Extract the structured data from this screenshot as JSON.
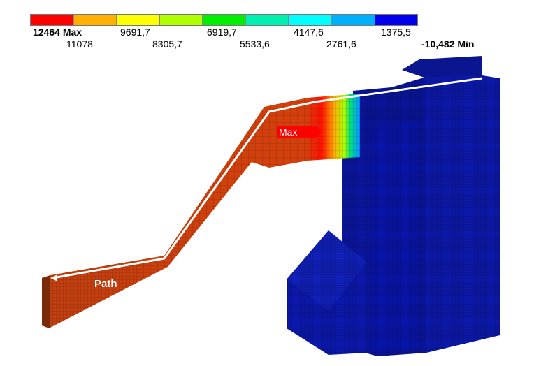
{
  "legend": {
    "colors": [
      "#ff0000",
      "#ffb000",
      "#ffff00",
      "#b0ff00",
      "#00ee00",
      "#00f0b0",
      "#00ffff",
      "#00b0ff",
      "#0000ee"
    ],
    "top_labels": [
      "12464 Max",
      "9691,7",
      "6919,7",
      "4147,6",
      "1375,5"
    ],
    "bottom_labels": [
      "11078",
      "8305,7",
      "5533,6",
      "2761,6",
      "-10,482 Min"
    ]
  },
  "annotations": {
    "max_label": "Max",
    "path_label": "Path",
    "max_color": "#ff0000"
  },
  "colors": {
    "structure": "#0a14a0",
    "chute": "#c8400c"
  }
}
